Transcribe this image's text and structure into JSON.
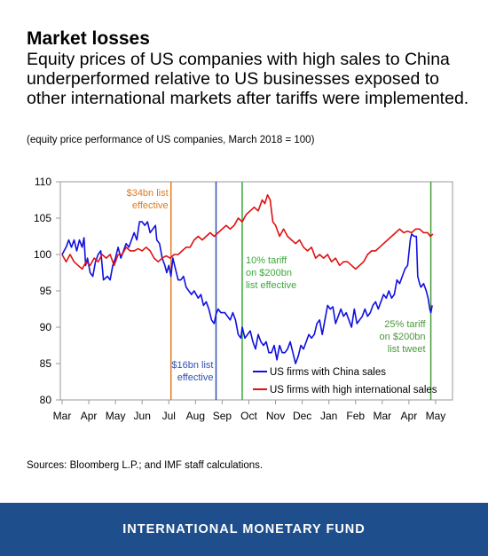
{
  "header": {
    "title": "Market losses",
    "subtitle": "Equity prices of US companies with high sales to China underperformed relative to US businesses exposed to other international markets after tariffs were implemented.",
    "note": "(equity price performance of US companies, March 2018 = 100)"
  },
  "chart_data": {
    "type": "line",
    "ylim": [
      80,
      110
    ],
    "yticks": [
      80,
      85,
      90,
      95,
      100,
      105,
      110
    ],
    "xlim": [
      0,
      14.5
    ],
    "xticks": [
      {
        "label": "Mar",
        "x": 0
      },
      {
        "label": "Apr",
        "x": 1
      },
      {
        "label": "May",
        "x": 2
      },
      {
        "label": "Jun",
        "x": 3
      },
      {
        "label": "Jul",
        "x": 4
      },
      {
        "label": "Aug",
        "x": 5
      },
      {
        "label": "Sep",
        "x": 6
      },
      {
        "label": "Oct",
        "x": 7
      },
      {
        "label": "Nov",
        "x": 8
      },
      {
        "label": "Dec",
        "x": 9
      },
      {
        "label": "Jan",
        "x": 10
      },
      {
        "label": "Feb",
        "x": 11
      },
      {
        "label": "Mar",
        "x": 12
      },
      {
        "label": "Apr",
        "x": 13
      },
      {
        "label": "May",
        "x": 14
      }
    ],
    "series": [
      {
        "name": "US firms with China sales",
        "color": "#1010e0",
        "points": [
          [
            0,
            100
          ],
          [
            0.15,
            101
          ],
          [
            0.25,
            102
          ],
          [
            0.35,
            101
          ],
          [
            0.45,
            102
          ],
          [
            0.55,
            100.5
          ],
          [
            0.65,
            102
          ],
          [
            0.75,
            101
          ],
          [
            0.82,
            102.3
          ],
          [
            0.88,
            98.5
          ],
          [
            0.95,
            99.5
          ],
          [
            1.05,
            97.5
          ],
          [
            1.15,
            97
          ],
          [
            1.25,
            99
          ],
          [
            1.35,
            100
          ],
          [
            1.45,
            100.5
          ],
          [
            1.55,
            96.5
          ],
          [
            1.7,
            97
          ],
          [
            1.8,
            96.5
          ],
          [
            1.9,
            98.5
          ],
          [
            2.0,
            99.5
          ],
          [
            2.1,
            101
          ],
          [
            2.2,
            99.5
          ],
          [
            2.3,
            100.5
          ],
          [
            2.4,
            101.5
          ],
          [
            2.5,
            101
          ],
          [
            2.6,
            102
          ],
          [
            2.7,
            103
          ],
          [
            2.8,
            102
          ],
          [
            2.9,
            104.5
          ],
          [
            3.0,
            104.5
          ],
          [
            3.1,
            104
          ],
          [
            3.2,
            104.5
          ],
          [
            3.3,
            103
          ],
          [
            3.4,
            103.5
          ],
          [
            3.5,
            104
          ],
          [
            3.55,
            102
          ],
          [
            3.65,
            101.5
          ],
          [
            3.75,
            99.5
          ],
          [
            3.85,
            98.5
          ],
          [
            3.92,
            97.5
          ],
          [
            4.0,
            98.5
          ],
          [
            4.08,
            97
          ],
          [
            4.15,
            99.5
          ],
          [
            4.25,
            98
          ],
          [
            4.35,
            96.5
          ],
          [
            4.45,
            96.5
          ],
          [
            4.55,
            97
          ],
          [
            4.65,
            95.5
          ],
          [
            4.75,
            95
          ],
          [
            4.85,
            94.5
          ],
          [
            4.95,
            95
          ],
          [
            5.1,
            94
          ],
          [
            5.2,
            94.5
          ],
          [
            5.3,
            93
          ],
          [
            5.4,
            93.5
          ],
          [
            5.5,
            92.5
          ],
          [
            5.6,
            91
          ],
          [
            5.7,
            90.5
          ],
          [
            5.77,
            91.8
          ],
          [
            5.85,
            92.5
          ],
          [
            5.95,
            92
          ],
          [
            6.1,
            92
          ],
          [
            6.2,
            91.5
          ],
          [
            6.3,
            91
          ],
          [
            6.4,
            92
          ],
          [
            6.5,
            91
          ],
          [
            6.6,
            89
          ],
          [
            6.7,
            88.5
          ],
          [
            6.75,
            90
          ],
          [
            6.85,
            88.5
          ],
          [
            6.95,
            89
          ],
          [
            7.05,
            89.5
          ],
          [
            7.15,
            88
          ],
          [
            7.25,
            87
          ],
          [
            7.35,
            89
          ],
          [
            7.45,
            88
          ],
          [
            7.55,
            87.5
          ],
          [
            7.65,
            88
          ],
          [
            7.75,
            86.5
          ],
          [
            7.85,
            86.5
          ],
          [
            7.95,
            87.5
          ],
          [
            8.05,
            85.5
          ],
          [
            8.1,
            86.5
          ],
          [
            8.15,
            87.5
          ],
          [
            8.25,
            86.5
          ],
          [
            8.35,
            86.5
          ],
          [
            8.45,
            87
          ],
          [
            8.55,
            88
          ],
          [
            8.65,
            86.5
          ],
          [
            8.75,
            85
          ],
          [
            8.85,
            86
          ],
          [
            8.95,
            87.5
          ],
          [
            9.05,
            87
          ],
          [
            9.15,
            88
          ],
          [
            9.25,
            89
          ],
          [
            9.35,
            88.5
          ],
          [
            9.45,
            89
          ],
          [
            9.55,
            90.5
          ],
          [
            9.65,
            91
          ],
          [
            9.75,
            89
          ],
          [
            9.85,
            91
          ],
          [
            9.95,
            93
          ],
          [
            10.05,
            92.5
          ],
          [
            10.15,
            92.8
          ],
          [
            10.25,
            90.5
          ],
          [
            10.35,
            91.5
          ],
          [
            10.45,
            92.5
          ],
          [
            10.55,
            91.5
          ],
          [
            10.65,
            92
          ],
          [
            10.75,
            91
          ],
          [
            10.85,
            90
          ],
          [
            10.95,
            92.5
          ],
          [
            11.05,
            90.5
          ],
          [
            11.15,
            91
          ],
          [
            11.25,
            91.5
          ],
          [
            11.35,
            92.5
          ],
          [
            11.45,
            91.5
          ],
          [
            11.55,
            92
          ],
          [
            11.65,
            93
          ],
          [
            11.75,
            93.5
          ],
          [
            11.85,
            92.5
          ],
          [
            11.95,
            93.5
          ],
          [
            12.05,
            94.5
          ],
          [
            12.15,
            94
          ],
          [
            12.25,
            95
          ],
          [
            12.35,
            94
          ],
          [
            12.45,
            94.5
          ],
          [
            12.55,
            96.5
          ],
          [
            12.65,
            96
          ],
          [
            12.75,
            97
          ],
          [
            12.85,
            98
          ],
          [
            12.95,
            98.5
          ],
          [
            13.05,
            102
          ],
          [
            13.1,
            102.8
          ],
          [
            13.2,
            102.5
          ],
          [
            13.28,
            102.5
          ],
          [
            13.33,
            97
          ],
          [
            13.4,
            96
          ],
          [
            13.45,
            95.5
          ],
          [
            13.55,
            96
          ],
          [
            13.65,
            95
          ],
          [
            13.72,
            94
          ],
          [
            13.78,
            92.5
          ],
          [
            13.82,
            92
          ],
          [
            13.87,
            93
          ]
        ]
      },
      {
        "name": "US firms with high international sales",
        "color": "#e01010",
        "points": [
          [
            0,
            100
          ],
          [
            0.15,
            99
          ],
          [
            0.3,
            100
          ],
          [
            0.45,
            99
          ],
          [
            0.6,
            98.5
          ],
          [
            0.75,
            98
          ],
          [
            0.9,
            99
          ],
          [
            1.05,
            98.5
          ],
          [
            1.2,
            99.5
          ],
          [
            1.35,
            99
          ],
          [
            1.5,
            100
          ],
          [
            1.65,
            99.5
          ],
          [
            1.8,
            100
          ],
          [
            1.95,
            98.5
          ],
          [
            2.1,
            100
          ],
          [
            2.25,
            100
          ],
          [
            2.4,
            101
          ],
          [
            2.55,
            100.5
          ],
          [
            2.7,
            100.5
          ],
          [
            2.85,
            100.8
          ],
          [
            3.0,
            100.5
          ],
          [
            3.15,
            101
          ],
          [
            3.3,
            100.5
          ],
          [
            3.45,
            99.5
          ],
          [
            3.6,
            99
          ],
          [
            3.75,
            99.5
          ],
          [
            3.9,
            99.8
          ],
          [
            4.05,
            99.5
          ],
          [
            4.2,
            100
          ],
          [
            4.35,
            100
          ],
          [
            4.5,
            100.5
          ],
          [
            4.65,
            101
          ],
          [
            4.8,
            101
          ],
          [
            4.95,
            102
          ],
          [
            5.1,
            102.5
          ],
          [
            5.25,
            102
          ],
          [
            5.4,
            102.5
          ],
          [
            5.55,
            103
          ],
          [
            5.7,
            102.5
          ],
          [
            5.85,
            103
          ],
          [
            6.0,
            103.5
          ],
          [
            6.15,
            104
          ],
          [
            6.3,
            103.5
          ],
          [
            6.45,
            104
          ],
          [
            6.6,
            105
          ],
          [
            6.75,
            104.5
          ],
          [
            6.9,
            105.5
          ],
          [
            7.05,
            106
          ],
          [
            7.2,
            106.5
          ],
          [
            7.35,
            106
          ],
          [
            7.5,
            107.5
          ],
          [
            7.6,
            107
          ],
          [
            7.7,
            108.2
          ],
          [
            7.8,
            107.5
          ],
          [
            7.9,
            104.5
          ],
          [
            8.0,
            104
          ],
          [
            8.15,
            102.5
          ],
          [
            8.3,
            103.5
          ],
          [
            8.45,
            102.5
          ],
          [
            8.6,
            102
          ],
          [
            8.75,
            101.5
          ],
          [
            8.9,
            102
          ],
          [
            9.05,
            101
          ],
          [
            9.2,
            100.5
          ],
          [
            9.35,
            101
          ],
          [
            9.5,
            99.5
          ],
          [
            9.65,
            100
          ],
          [
            9.8,
            99.5
          ],
          [
            9.95,
            100
          ],
          [
            10.1,
            99
          ],
          [
            10.25,
            99.5
          ],
          [
            10.4,
            98.5
          ],
          [
            10.55,
            99
          ],
          [
            10.7,
            99
          ],
          [
            10.85,
            98.5
          ],
          [
            11.0,
            98
          ],
          [
            11.15,
            98.5
          ],
          [
            11.3,
            99
          ],
          [
            11.45,
            100
          ],
          [
            11.6,
            100.5
          ],
          [
            11.75,
            100.5
          ],
          [
            11.9,
            101
          ],
          [
            12.05,
            101.5
          ],
          [
            12.2,
            102
          ],
          [
            12.35,
            102.5
          ],
          [
            12.5,
            103
          ],
          [
            12.65,
            103.5
          ],
          [
            12.8,
            103
          ],
          [
            12.95,
            103.2
          ],
          [
            13.1,
            103
          ],
          [
            13.25,
            103.5
          ],
          [
            13.4,
            103.5
          ],
          [
            13.55,
            103
          ],
          [
            13.7,
            103
          ],
          [
            13.8,
            102.5
          ],
          [
            13.9,
            102.8
          ]
        ]
      }
    ],
    "events": [
      {
        "x": 4.08,
        "color": "#e07b20",
        "label_lines": [
          "$34bn list",
          "effective"
        ]
      },
      {
        "x": 5.77,
        "color": "#3050b0",
        "label_lines": [
          "$16bn list",
          "effective"
        ]
      },
      {
        "x": 6.75,
        "color": "#3aaa3a",
        "label_lines": [
          "10% tariff",
          "on $200bn",
          "list effective"
        ]
      },
      {
        "x": 13.82,
        "color": "#4a9a3a",
        "label_lines": [
          "25% tariff",
          "on $200bn",
          "list tweet"
        ]
      }
    ]
  },
  "sources": "Sources: Bloomberg L.P.; and IMF staff calculations.",
  "footer": "INTERNATIONAL MONETARY FUND"
}
